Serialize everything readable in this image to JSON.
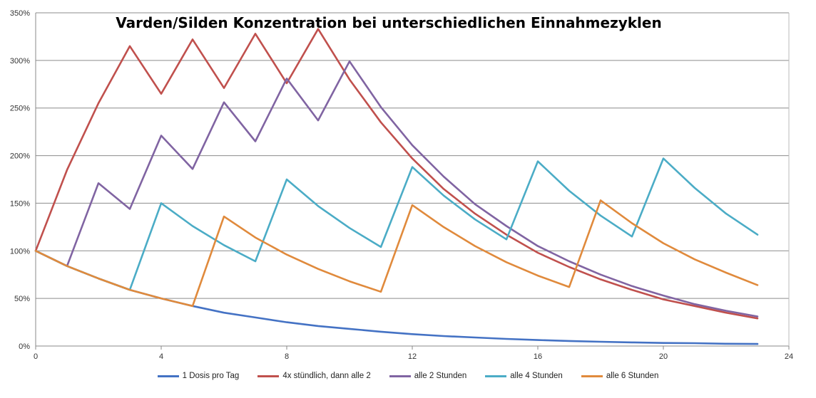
{
  "chart_data": {
    "type": "line",
    "title": "Varden/Silden Konzentration bei unterschiedlichen Einnahmezyklen",
    "xlabel": "",
    "ylabel": "",
    "xlim": [
      0,
      24
    ],
    "ylim": [
      0,
      3.5
    ],
    "x_ticks": [
      "0",
      "4",
      "8",
      "12",
      "16",
      "20",
      "24"
    ],
    "y_ticks": [
      "0%",
      "50%",
      "100%",
      "150%",
      "200%",
      "250%",
      "300%",
      "350%"
    ],
    "grid": "horizontal",
    "legend_position": "bottom",
    "x": [
      0,
      1,
      2,
      3,
      4,
      5,
      6,
      7,
      8,
      9,
      10,
      11,
      12,
      13,
      14,
      15,
      16,
      17,
      18,
      19,
      20,
      21,
      22,
      23
    ],
    "series": [
      {
        "name": "1 Dosis pro Tag",
        "color": "#4472C4",
        "values": [
          1.0,
          0.84,
          0.71,
          0.59,
          0.5,
          0.42,
          0.35,
          0.3,
          0.25,
          0.21,
          0.18,
          0.15,
          0.125,
          0.105,
          0.09,
          0.075,
          0.063,
          0.053,
          0.045,
          0.038,
          0.032,
          0.03,
          0.024,
          0.022
        ]
      },
      {
        "name": "4x stündlich, dann alle 2",
        "color": "#C0504D",
        "values": [
          1.0,
          1.85,
          2.55,
          3.15,
          2.65,
          3.22,
          2.71,
          3.28,
          2.76,
          3.33,
          2.8,
          2.35,
          1.97,
          1.65,
          1.39,
          1.17,
          0.98,
          0.83,
          0.7,
          0.59,
          0.49,
          0.42,
          0.35,
          0.29
        ]
      },
      {
        "name": "alle 2 Stunden",
        "color": "#8064A2",
        "values": [
          1.0,
          0.84,
          1.71,
          1.44,
          2.21,
          1.86,
          2.56,
          2.15,
          2.81,
          2.37,
          2.99,
          2.51,
          2.11,
          1.78,
          1.49,
          1.26,
          1.05,
          0.89,
          0.75,
          0.63,
          0.53,
          0.44,
          0.37,
          0.31
        ]
      },
      {
        "name": "alle 4 Stunden",
        "color": "#4BACC6",
        "values": [
          1.0,
          0.84,
          0.71,
          0.59,
          1.5,
          1.26,
          1.06,
          0.89,
          1.75,
          1.47,
          1.24,
          1.04,
          1.88,
          1.58,
          1.33,
          1.12,
          1.94,
          1.63,
          1.37,
          1.15,
          1.97,
          1.66,
          1.39,
          1.17
        ]
      },
      {
        "name": "alle 6 Stunden",
        "color": "#E08A3C",
        "values": [
          1.0,
          0.84,
          0.71,
          0.59,
          0.5,
          0.42,
          1.36,
          1.14,
          0.96,
          0.81,
          0.68,
          0.57,
          1.48,
          1.25,
          1.05,
          0.88,
          0.74,
          0.62,
          1.53,
          1.29,
          1.08,
          0.91,
          0.77,
          0.64
        ]
      }
    ]
  }
}
